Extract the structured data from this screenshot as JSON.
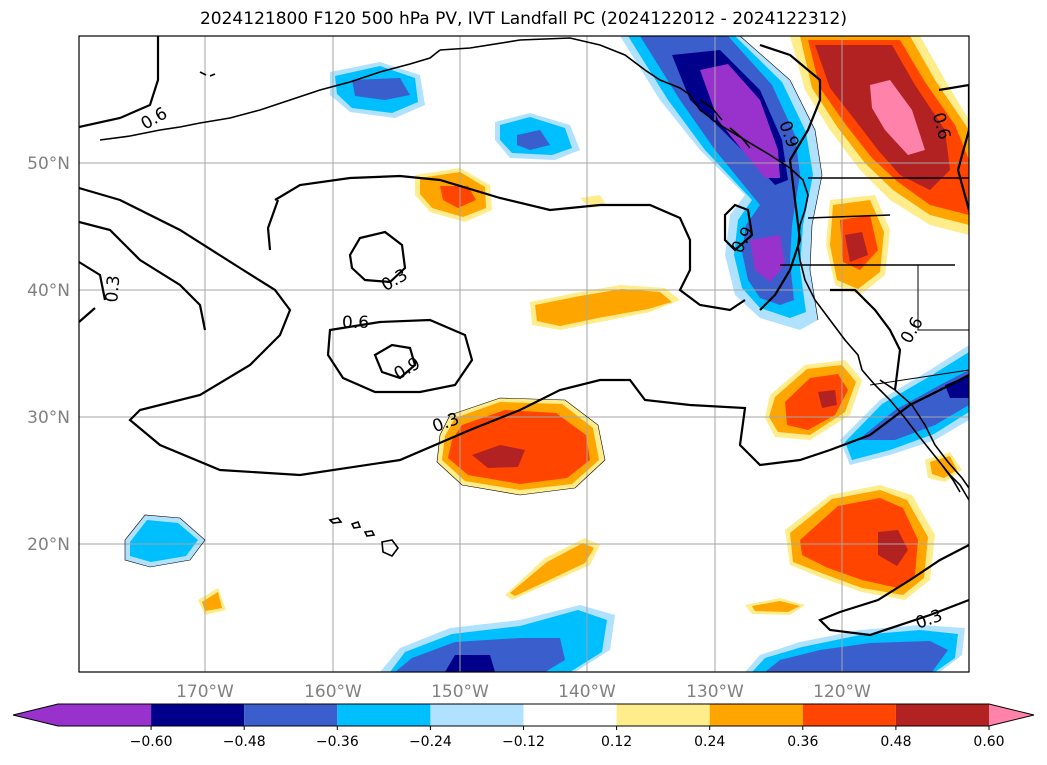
{
  "title": "2024121800 F120 500 hPa PV, IVT Landfall PC (2024122012 - 2024122312)",
  "lat_labels": [
    "50°N",
    "40°N",
    "30°N",
    "20°N"
  ],
  "lon_labels": [
    "170°W",
    "160°W",
    "150°W",
    "140°W",
    "130°W",
    "120°W"
  ],
  "contour_labels": [
    "0.6",
    "0.3",
    "0.3",
    "0.6",
    "0.9",
    "0.3",
    "0.9",
    "0.9",
    "0.6",
    "0.6",
    "0.3"
  ],
  "colorbar": {
    "colors": [
      "#9932CC",
      "#00008B",
      "#3A5FCD",
      "#00BFFF",
      "#B0E2FF",
      "#FFFFFF",
      "#FFEC8B",
      "#FFA500",
      "#FF4500",
      "#B22222",
      "#FF82AB"
    ],
    "tick_labels": [
      "−0.60",
      "−0.48",
      "−0.36",
      "−0.24",
      "−0.12",
      "0.12",
      "0.24",
      "0.36",
      "0.48",
      "0.60"
    ]
  }
}
